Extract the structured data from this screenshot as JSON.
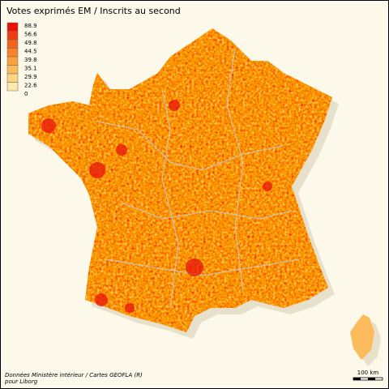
{
  "title": "Votes exprimés EM / Inscrits au second",
  "legend": {
    "breaks": [
      88.9,
      56.6,
      49.8,
      44.5,
      39.8,
      35.1,
      29.9,
      22.6,
      0
    ],
    "colors": [
      "#e8120c",
      "#f23d10",
      "#f4631c",
      "#f7832a",
      "#f9a03f",
      "#fbbb5c",
      "#fdd57f",
      "#fee9a8"
    ]
  },
  "source": [
    "Données Ministère intérieur / Cartes GEOFLA (R)",
    "pour Liborg"
  ],
  "scale_label": "100 km"
}
